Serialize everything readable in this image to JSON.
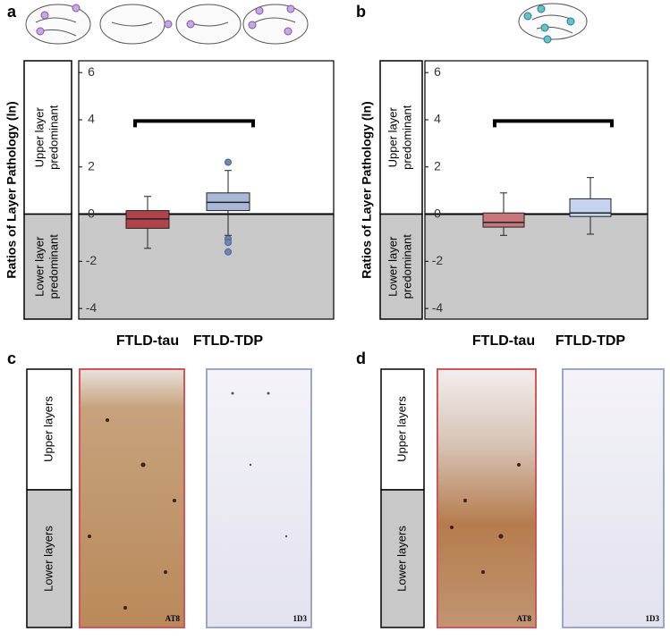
{
  "panel_labels": [
    "a",
    "b",
    "c",
    "d"
  ],
  "chart_data": [
    {
      "type": "box",
      "ylabel": "Ratios of Layer Pathology (ln)",
      "upper_region": "Upper layer predominant",
      "lower_region": "Lower layer predominant",
      "categories": [
        "FTLD-tau",
        "FTLD-TDP"
      ],
      "ylim": [
        -4.45,
        6.5
      ],
      "yticks": [
        -4,
        -2,
        0,
        2,
        4,
        6
      ],
      "boxes": [
        {
          "color": "#b0434a",
          "whislo": -1.45,
          "q1": -0.6,
          "med": -0.2,
          "q3": 0.15,
          "whishi": 0.75,
          "fliers": []
        },
        {
          "color": "#a9b7d8",
          "whislo": -0.9,
          "q1": 0.15,
          "med": 0.5,
          "q3": 0.9,
          "whishi": 1.85,
          "fliers": [
            2.2,
            -1.05,
            -1.2,
            -1.6
          ]
        }
      ]
    },
    {
      "type": "box",
      "ylabel": "Ratios of Layer Pathology (ln)",
      "upper_region": "Upper layer predominant",
      "lower_region": "Lower layer predominant",
      "categories": [
        "FTLD-tau",
        "FTLD-TDP"
      ],
      "ylim": [
        -4.45,
        6.5
      ],
      "yticks": [
        -4,
        -2,
        0,
        2,
        4,
        6
      ],
      "boxes": [
        {
          "color": "#c8767a",
          "whislo": -0.9,
          "q1": -0.55,
          "med": -0.35,
          "q3": 0.05,
          "whishi": 0.9,
          "fliers": []
        },
        {
          "color": "#c6d3ef",
          "whislo": -0.85,
          "q1": -0.1,
          "med": 0.05,
          "q3": 0.65,
          "whishi": 1.55,
          "fliers": []
        }
      ]
    }
  ],
  "histology": [
    {
      "upper_label": "Upper layers",
      "lower_label": "Lower layers",
      "stains": [
        "AT8",
        "1D3"
      ]
    },
    {
      "upper_label": "Upper layers",
      "lower_label": "Lower layers",
      "stains": [
        "AT8",
        "1D3"
      ]
    }
  ]
}
